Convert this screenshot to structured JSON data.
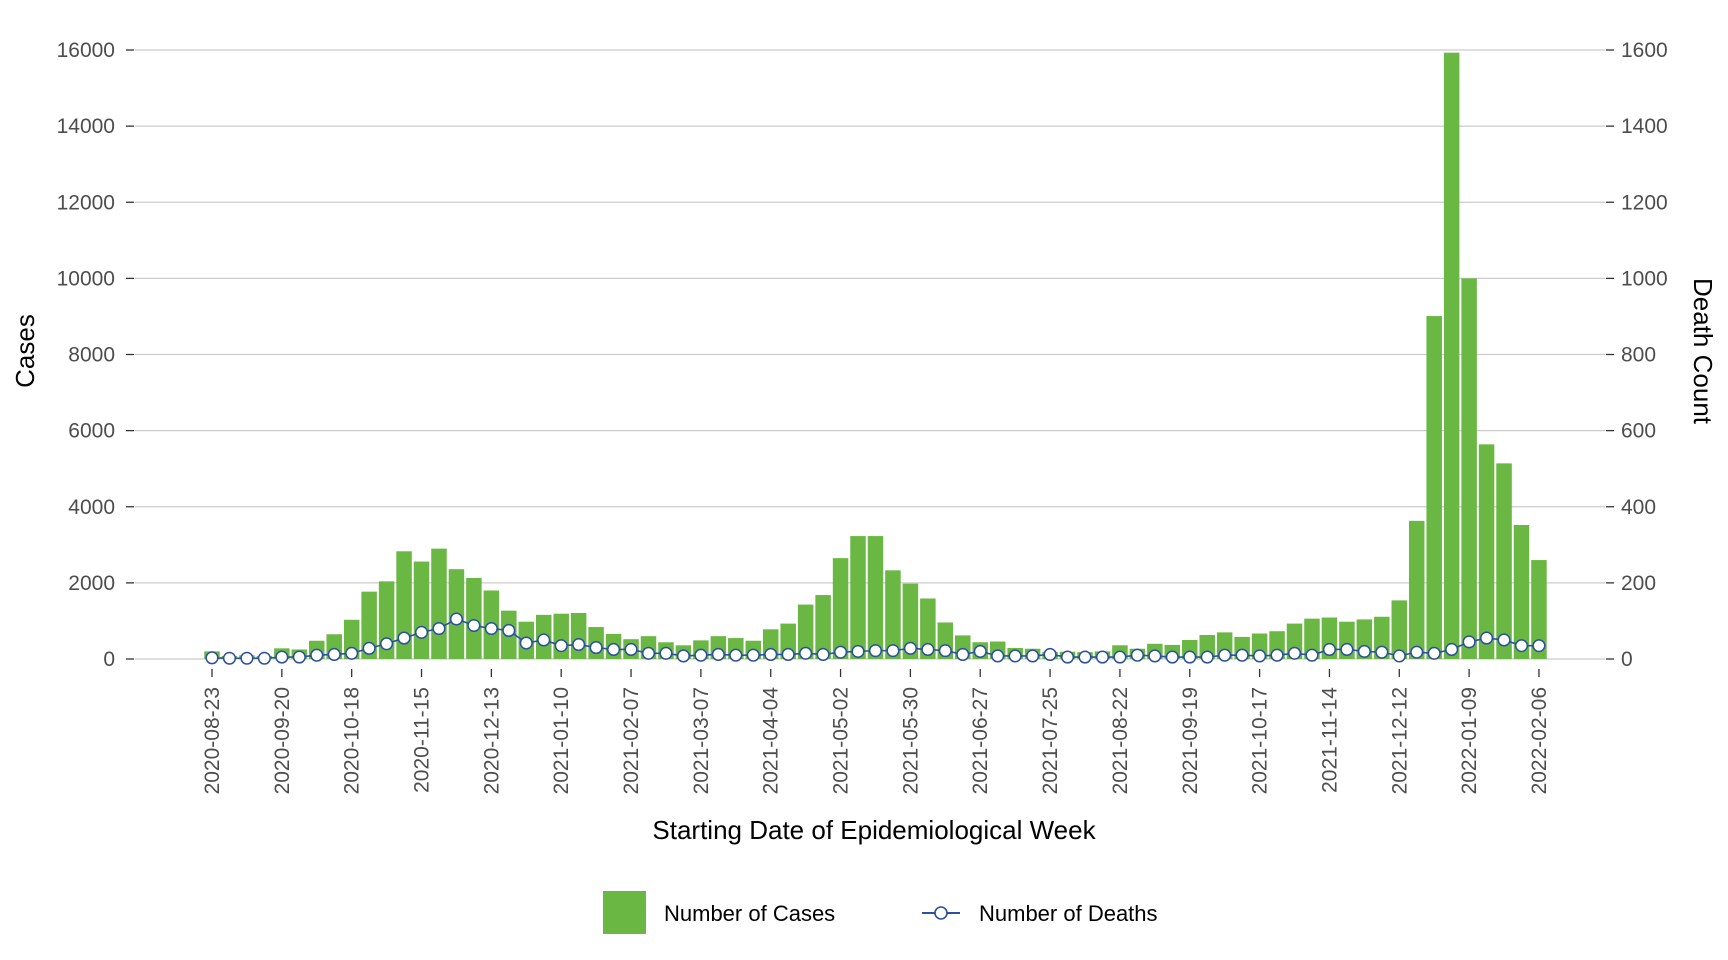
{
  "chart_data": {
    "type": "bar",
    "title": "",
    "xlabel": "Starting Date of Epidemiological Week",
    "ylabel": "Cases",
    "y2label": "Death Count",
    "ylim": [
      0,
      16000
    ],
    "y2lim": [
      0,
      1600
    ],
    "yticks": [
      0,
      2000,
      4000,
      6000,
      8000,
      10000,
      12000,
      14000,
      16000
    ],
    "y2ticks": [
      0,
      200,
      400,
      600,
      800,
      1000,
      1200,
      1400,
      1600
    ],
    "x_start": "2020-08-23",
    "x_step_days": 7,
    "xtick_labels": [
      "2020-08-23",
      "2020-09-20",
      "2020-10-18",
      "2020-11-15",
      "2020-12-13",
      "2021-01-10",
      "2021-02-07",
      "2021-03-07",
      "2021-04-04",
      "2021-05-02",
      "2021-05-30",
      "2021-06-27",
      "2021-07-25",
      "2021-08-22",
      "2021-09-19",
      "2021-10-17",
      "2021-11-14",
      "2021-12-12",
      "2022-01-09",
      "2022-02-06"
    ],
    "grid": true,
    "legend_position": "bottom",
    "colors": {
      "cases": "#6ab843",
      "deaths_line": "#2c4f9e",
      "deaths_marker_fill": "#ffffff",
      "grid": "#cccccc",
      "tick_text": "#4d4d4d"
    },
    "series": [
      {
        "name": "Number of Cases",
        "type": "bar",
        "axis": "left",
        "values": [
          200,
          80,
          100,
          80,
          280,
          250,
          480,
          650,
          1030,
          1770,
          2040,
          2830,
          2560,
          2900,
          2360,
          2130,
          1800,
          1270,
          980,
          1160,
          1190,
          1210,
          840,
          660,
          520,
          600,
          440,
          360,
          490,
          600,
          550,
          480,
          780,
          930,
          1430,
          1680,
          2650,
          3230,
          3230,
          2330,
          1980,
          1590,
          960,
          620,
          440,
          460,
          290,
          270,
          190,
          190,
          180,
          200,
          360,
          270,
          400,
          370,
          500,
          630,
          700,
          580,
          670,
          730,
          930,
          1060,
          1090,
          980,
          1040,
          1110,
          1540,
          3630,
          9010,
          15930,
          10000,
          5640,
          5140,
          3520,
          2600
        ]
      },
      {
        "name": "Number of Deaths",
        "type": "line",
        "axis": "right",
        "values": [
          3,
          2,
          2,
          2,
          5,
          5,
          10,
          12,
          15,
          28,
          40,
          55,
          70,
          80,
          105,
          88,
          80,
          75,
          42,
          50,
          35,
          38,
          30,
          25,
          25,
          15,
          15,
          8,
          10,
          12,
          10,
          10,
          12,
          12,
          15,
          12,
          18,
          20,
          22,
          22,
          28,
          25,
          22,
          12,
          20,
          8,
          8,
          8,
          12,
          5,
          5,
          5,
          5,
          10,
          8,
          5,
          5,
          5,
          10,
          10,
          8,
          10,
          15,
          10,
          25,
          25,
          20,
          18,
          8,
          18,
          15,
          25,
          45,
          55,
          50,
          35,
          35
        ]
      }
    ]
  }
}
